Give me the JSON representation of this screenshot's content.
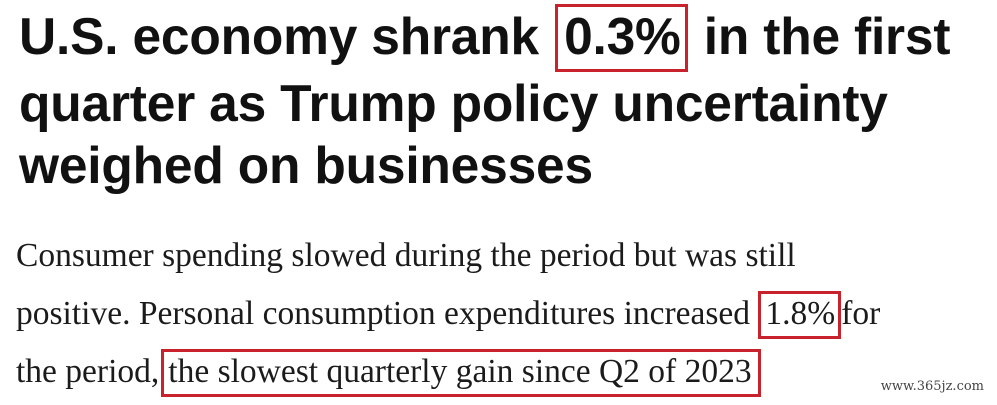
{
  "headline": {
    "line1_before": "U.S. economy shrank",
    "line1_boxed": "0.3%",
    "line1_after": "in the first",
    "line2": "quarter as Trump policy uncertainty",
    "line3": "weighed on businesses"
  },
  "body": {
    "line1": "Consumer spending slowed during the period but was still",
    "line2_before": "positive. Personal consumption expenditures increased",
    "line2_boxed": "1.8%",
    "line2_after": "for",
    "line3_before": "the period,",
    "line3_boxed": "the slowest quarterly gain since Q2 of 2023"
  },
  "watermark": "www.365jz.com",
  "highlight_color": "#c8232c"
}
